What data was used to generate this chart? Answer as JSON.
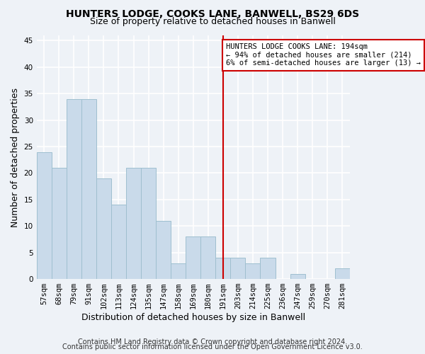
{
  "title1": "HUNTERS LODGE, COOKS LANE, BANWELL, BS29 6DS",
  "title2": "Size of property relative to detached houses in Banwell",
  "xlabel": "Distribution of detached houses by size in Banwell",
  "ylabel": "Number of detached properties",
  "categories": [
    "57sqm",
    "68sqm",
    "79sqm",
    "91sqm",
    "102sqm",
    "113sqm",
    "124sqm",
    "135sqm",
    "147sqm",
    "158sqm",
    "169sqm",
    "180sqm",
    "191sqm",
    "203sqm",
    "214sqm",
    "225sqm",
    "236sqm",
    "247sqm",
    "259sqm",
    "270sqm",
    "281sqm"
  ],
  "values": [
    24,
    21,
    34,
    34,
    19,
    14,
    21,
    21,
    11,
    3,
    8,
    8,
    4,
    4,
    3,
    4,
    0,
    1,
    0,
    0,
    2
  ],
  "bar_color": "#c9daea",
  "bar_edge_color": "#9fbfcf",
  "vline_index": 12,
  "vline_color": "#cc0000",
  "annotation_text": "HUNTERS LODGE COOKS LANE: 194sqm\n← 94% of detached houses are smaller (214)\n6% of semi-detached houses are larger (13) →",
  "annotation_box_color": "#ffffff",
  "annotation_box_edge": "#cc0000",
  "ylim": [
    0,
    46
  ],
  "yticks": [
    0,
    5,
    10,
    15,
    20,
    25,
    30,
    35,
    40,
    45
  ],
  "footer1": "Contains HM Land Registry data © Crown copyright and database right 2024.",
  "footer2": "Contains public sector information licensed under the Open Government Licence v3.0.",
  "background_color": "#eef2f7",
  "grid_color": "#ffffff",
  "title_fontsize": 10,
  "subtitle_fontsize": 9,
  "axis_label_fontsize": 9,
  "tick_fontsize": 7.5,
  "annotation_fontsize": 7.5,
  "footer_fontsize": 7
}
